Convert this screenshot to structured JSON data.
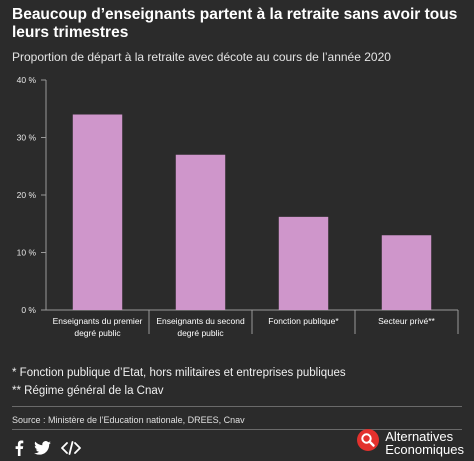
{
  "header": {
    "title": "Beaucoup d’enseignants partent à la retraite sans avoir tous leurs trimestres",
    "subtitle": "Proportion de départ à la retraite avec décote au cours de l’année 2020"
  },
  "chart_data": {
    "type": "bar",
    "categories": [
      [
        "Enseignants du premier",
        "degré public"
      ],
      [
        "Enseignants du second",
        "degré public"
      ],
      [
        "Fonction publique*"
      ],
      [
        "Secteur privé**"
      ]
    ],
    "values": [
      34,
      27,
      16.2,
      13
    ],
    "ylim": [
      0,
      40
    ],
    "yticks": [
      0,
      10,
      20,
      30,
      40
    ],
    "ytick_labels": [
      "0 %",
      "10 %",
      "20 %",
      "30 %",
      "40 %"
    ],
    "bar_color": "#cf96cb",
    "grid": false
  },
  "notes": [
    "* Fonction publique d’Etat, hors militaires et entreprises publiques",
    "** Régime général de la Cnav"
  ],
  "source": "Source : Ministère de l’Education nationale, DREES, Cnav",
  "social_icons": [
    "facebook-icon",
    "twitter-icon",
    "embed-code-icon"
  ],
  "brand": {
    "line1": "Alternatives",
    "line2": "Economiques",
    "accent": "#e3312d"
  }
}
